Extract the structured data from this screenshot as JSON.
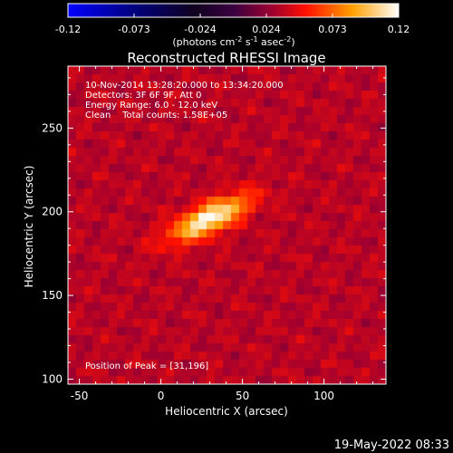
{
  "chart_data": {
    "type": "heatmap",
    "title": "Reconstructed RHESSI Image",
    "xlabel": "Heliocentric X (arcsec)",
    "ylabel": "Heliocentric Y (arcsec)",
    "xlim": [
      -57,
      138
    ],
    "ylim": [
      97,
      287
    ],
    "x_ticks": [
      -50,
      0,
      50,
      100
    ],
    "y_ticks": [
      100,
      150,
      200,
      250
    ],
    "colorbar": {
      "range": [
        -0.12,
        0.12
      ],
      "ticks": [
        "-0.12",
        "-0.073",
        "-0.024",
        "0.024",
        "0.073",
        "0.12"
      ],
      "label_main": "(photons cm",
      "label_exp1": "-2",
      "label_mid": " s",
      "label_exp2": "-1",
      "label_end": " asec",
      "label_exp3": "-2",
      "label_close": ")"
    },
    "annotations": [
      "10-Nov-2014 13:28:20.000 to 13:34:20.000",
      "Detectors: 3F 6F 9F, Att 0",
      "Energy Range: 6.0 - 12.0 keV",
      "Clean    Total counts: 1.58E+05"
    ],
    "peak_label": "Position of Peak = [31,196]",
    "peak": {
      "x": 31,
      "y": 196,
      "value": 0.12
    },
    "sources": [
      {
        "x": 30,
        "y": 196,
        "sigma_major": 18,
        "sigma_minor": 6,
        "angle_deg": 25,
        "amplitude": 0.12
      }
    ],
    "background_level": 0.035,
    "timestamp": "19-May-2022 08:33"
  },
  "colors": {
    "background": "#000000",
    "colormap": [
      "#0000ff",
      "#000000",
      "#700060",
      "#ff0000",
      "#ffa000",
      "#ffffff"
    ]
  }
}
